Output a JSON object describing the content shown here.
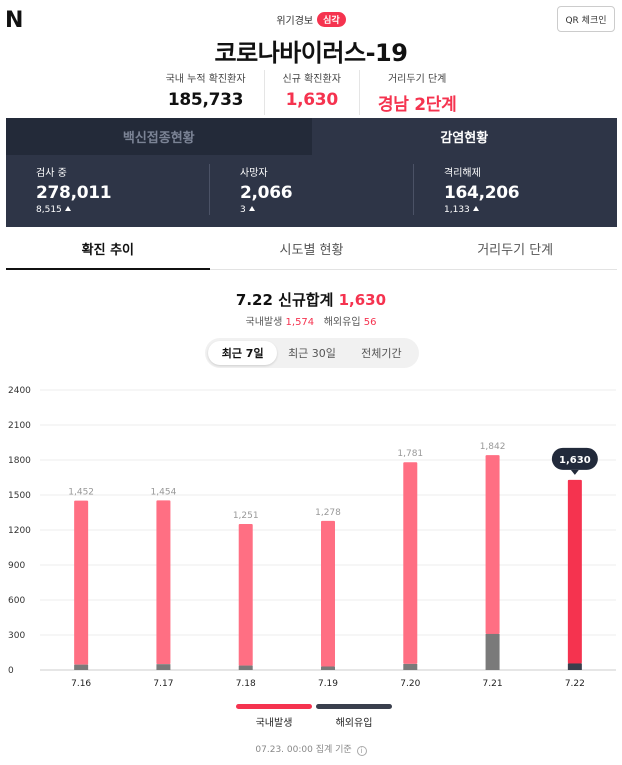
{
  "header": {
    "logo": "N",
    "qr_label": "QR 체크인",
    "alert_label": "위기경보",
    "alert_level": "심각",
    "title": "코로나바이러스-19"
  },
  "stats": [
    {
      "label": "국내 누적 확진환자",
      "value": "185,733"
    },
    {
      "label": "신규 확진환자",
      "value": "1,630"
    },
    {
      "label": "거리두기 단계",
      "value": "경남 2단계"
    }
  ],
  "dark_tabs": [
    "백신접종현황",
    "감염현황"
  ],
  "dark_stats": [
    {
      "label": "검사 중",
      "value": "278,011",
      "delta": "8,515"
    },
    {
      "label": "사망자",
      "value": "2,066",
      "delta": "3"
    },
    {
      "label": "격리해제",
      "value": "164,206",
      "delta": "1,133"
    }
  ],
  "content_tabs": [
    "확진 추이",
    "시도별 현황",
    "거리두기 단계"
  ],
  "summary": {
    "date": "7.22",
    "total_label": "신규합계",
    "total": "1,630",
    "domestic_label": "국내발생",
    "domestic": "1,574",
    "imported_label": "해외유입",
    "imported": "56"
  },
  "period_tabs": [
    "최근 7일",
    "최근 30일",
    "전체기간"
  ],
  "chart_data": {
    "type": "bar",
    "stacked": true,
    "categories": [
      "7.16",
      "7.17",
      "7.18",
      "7.19",
      "7.20",
      "7.21",
      "7.22"
    ],
    "totals": [
      1452,
      1454,
      1251,
      1278,
      1781,
      1842,
      1630
    ],
    "series": [
      {
        "name": "국내발생",
        "values": [
          1406,
          1404,
          1213,
          1248,
          1729,
          1533,
          1574
        ]
      },
      {
        "name": "해외유입",
        "values": [
          46,
          50,
          38,
          30,
          52,
          309,
          56
        ]
      }
    ],
    "highlight_index": 6,
    "yticks": [
      0,
      300,
      600,
      900,
      1200,
      1500,
      1800,
      2100,
      2400
    ],
    "ylim": [
      0,
      2400
    ],
    "grid": true,
    "legend": "bottom"
  },
  "colors": {
    "accent": "#f5334f",
    "domestic": "#ff6f83",
    "imported": "#7a7a7a",
    "highlight": "#f5334f",
    "highlight_imported": "#3a3f4d",
    "tooltip": "#222a3b"
  },
  "legend": [
    "국내발생",
    "해외유입"
  ],
  "footer": "07.23. 00:00 집계 기준"
}
